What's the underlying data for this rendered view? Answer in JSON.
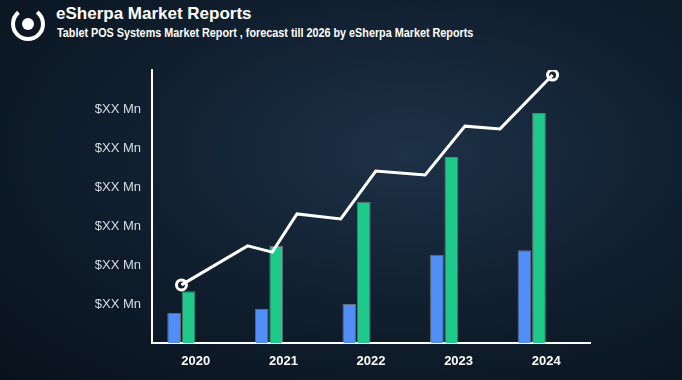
{
  "chart_data": {
    "type": "bar",
    "title": "eSherpa Market Reports",
    "subtitle": "Tablet POS Systems Market Report , forecast till 2026 by eSherpa Market Reports",
    "categories": [
      "2020",
      "2021",
      "2022",
      "2023",
      "2024"
    ],
    "series": [
      {
        "color": "#4f8ff7",
        "values": [
          0.77,
          0.87,
          1.0,
          2.26,
          2.38
        ]
      },
      {
        "color": "#1ec98a",
        "values": [
          1.33,
          2.49,
          3.62,
          4.77,
          5.9
        ]
      },
      {
        "type": "line",
        "color": "#ffffff",
        "marker": "circle",
        "x": [
          -0.38,
          0.45,
          0.76,
          1.07,
          1.62,
          2.06,
          2.68,
          3.18,
          3.62,
          4.28
        ],
        "values": [
          1.49,
          2.49,
          2.33,
          3.31,
          3.18,
          4.41,
          4.31,
          5.56,
          5.49,
          6.87
        ]
      }
    ],
    "ylim": [
      0,
      7
    ],
    "yticks": [
      {
        "value": 1,
        "label": "$XX Mn"
      },
      {
        "value": 2,
        "label": "$XX Mn"
      },
      {
        "value": 3,
        "label": "$XX Mn"
      },
      {
        "value": 4,
        "label": "$XX Mn"
      },
      {
        "value": 5,
        "label": "$XX Mn"
      },
      {
        "value": 6,
        "label": "$XX Mn"
      }
    ],
    "grid": false
  }
}
